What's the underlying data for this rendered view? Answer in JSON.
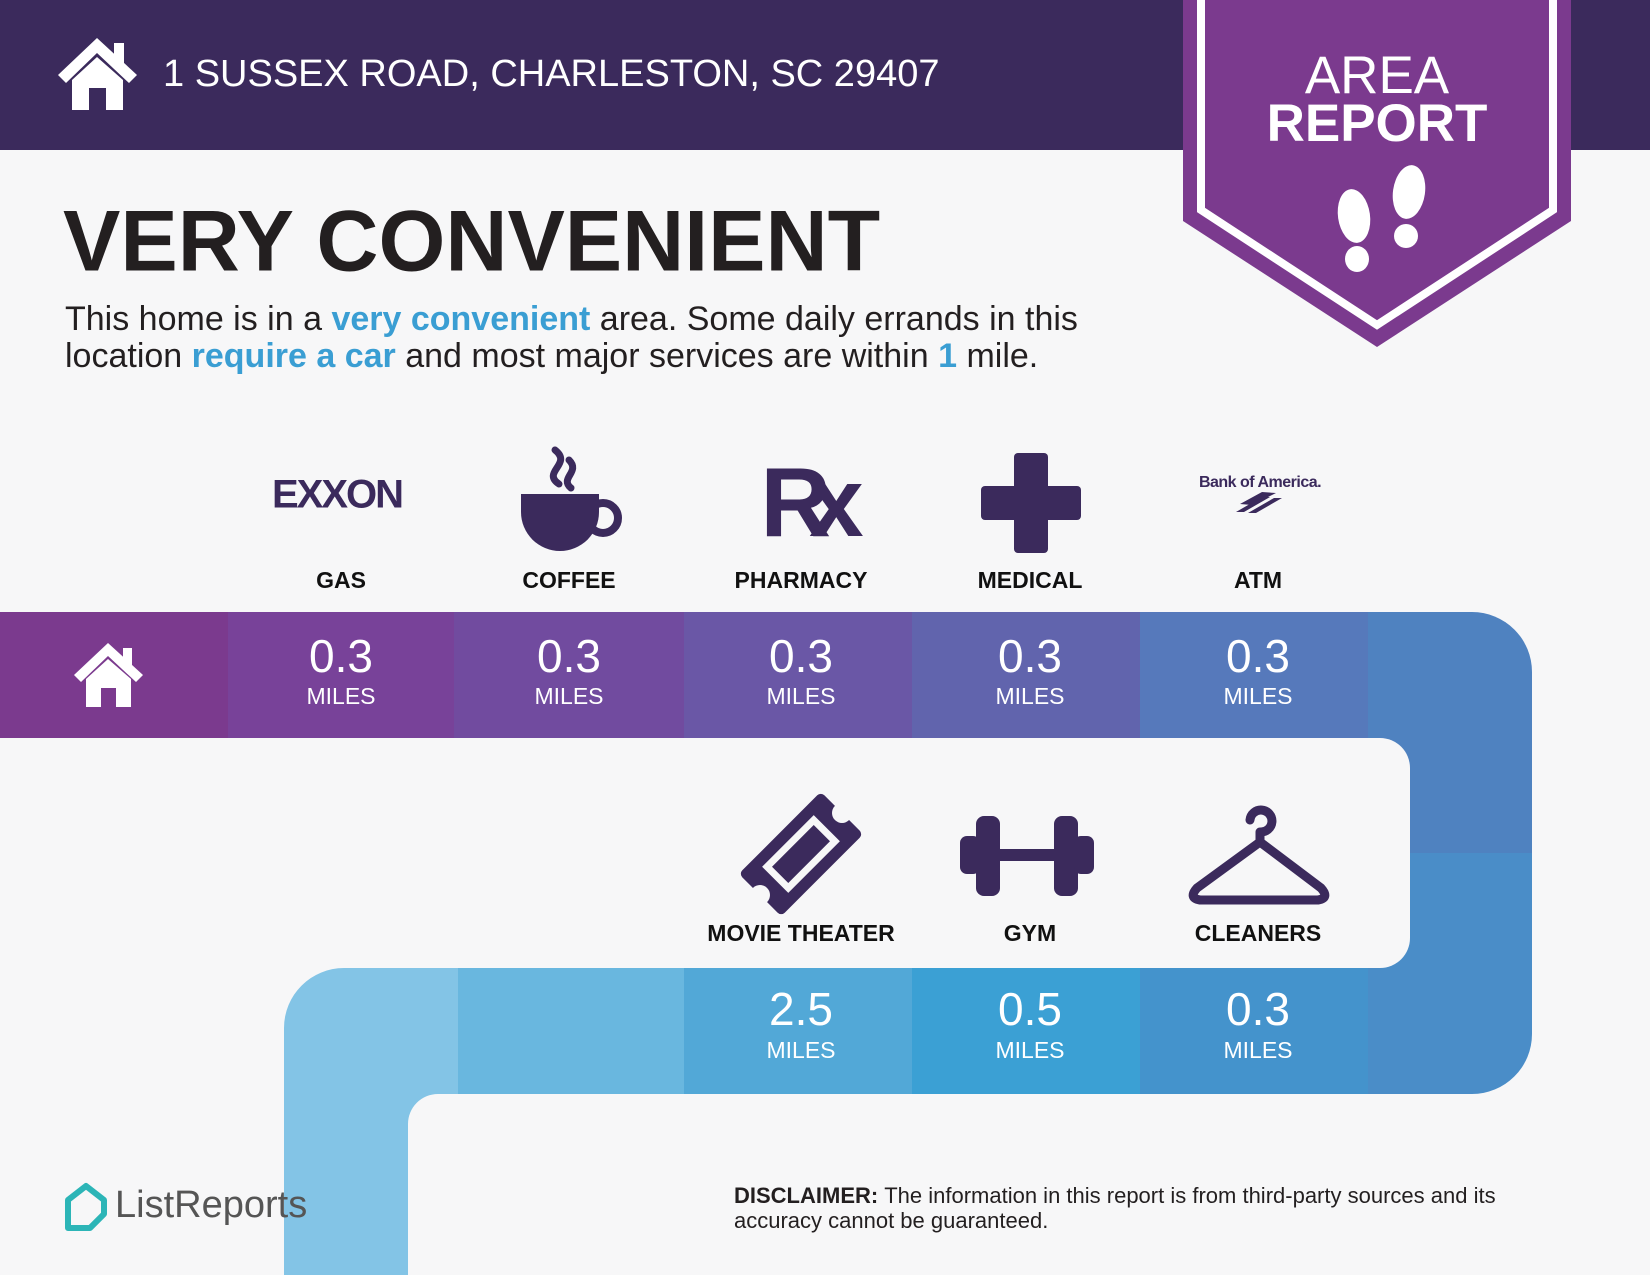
{
  "header": {
    "address": "1 SUSSEX ROAD, CHARLESTON, SC 29407"
  },
  "badge": {
    "lines": [
      "AREA",
      "REPORT"
    ]
  },
  "headline": "VERY CONVENIENT",
  "summary": {
    "line1": [
      "This home is in a ",
      "very convenient",
      " area. Some daily errands in this"
    ],
    "line2": [
      "location ",
      "require a car",
      " and most major services are within ",
      "1",
      " mile."
    ]
  },
  "distance_unit": "MILES",
  "route": {
    "upper": [
      {
        "label": "GAS",
        "logo": "EXXON",
        "distance": 0.3
      },
      {
        "label": "COFFEE",
        "distance": 0.3
      },
      {
        "label": "PHARMACY",
        "logo": "Rx",
        "distance": 0.3
      },
      {
        "label": "MEDICAL",
        "distance": 0.3
      },
      {
        "label": "ATM",
        "logo": "Bank of America.",
        "distance": 0.3
      }
    ],
    "lower": [
      {
        "label": "MOVIE THEATER",
        "distance": 2.5
      },
      {
        "label": "GYM",
        "distance": 0.5
      },
      {
        "label": "CLEANERS",
        "distance": 0.3
      }
    ]
  },
  "footer": {
    "brand": "ListReports",
    "disclaimer_label": "DISCLAIMER:",
    "disclaimer_lines": [
      "The information in this report is from third-party sources and its",
      "accuracy cannot be guaranteed."
    ]
  }
}
